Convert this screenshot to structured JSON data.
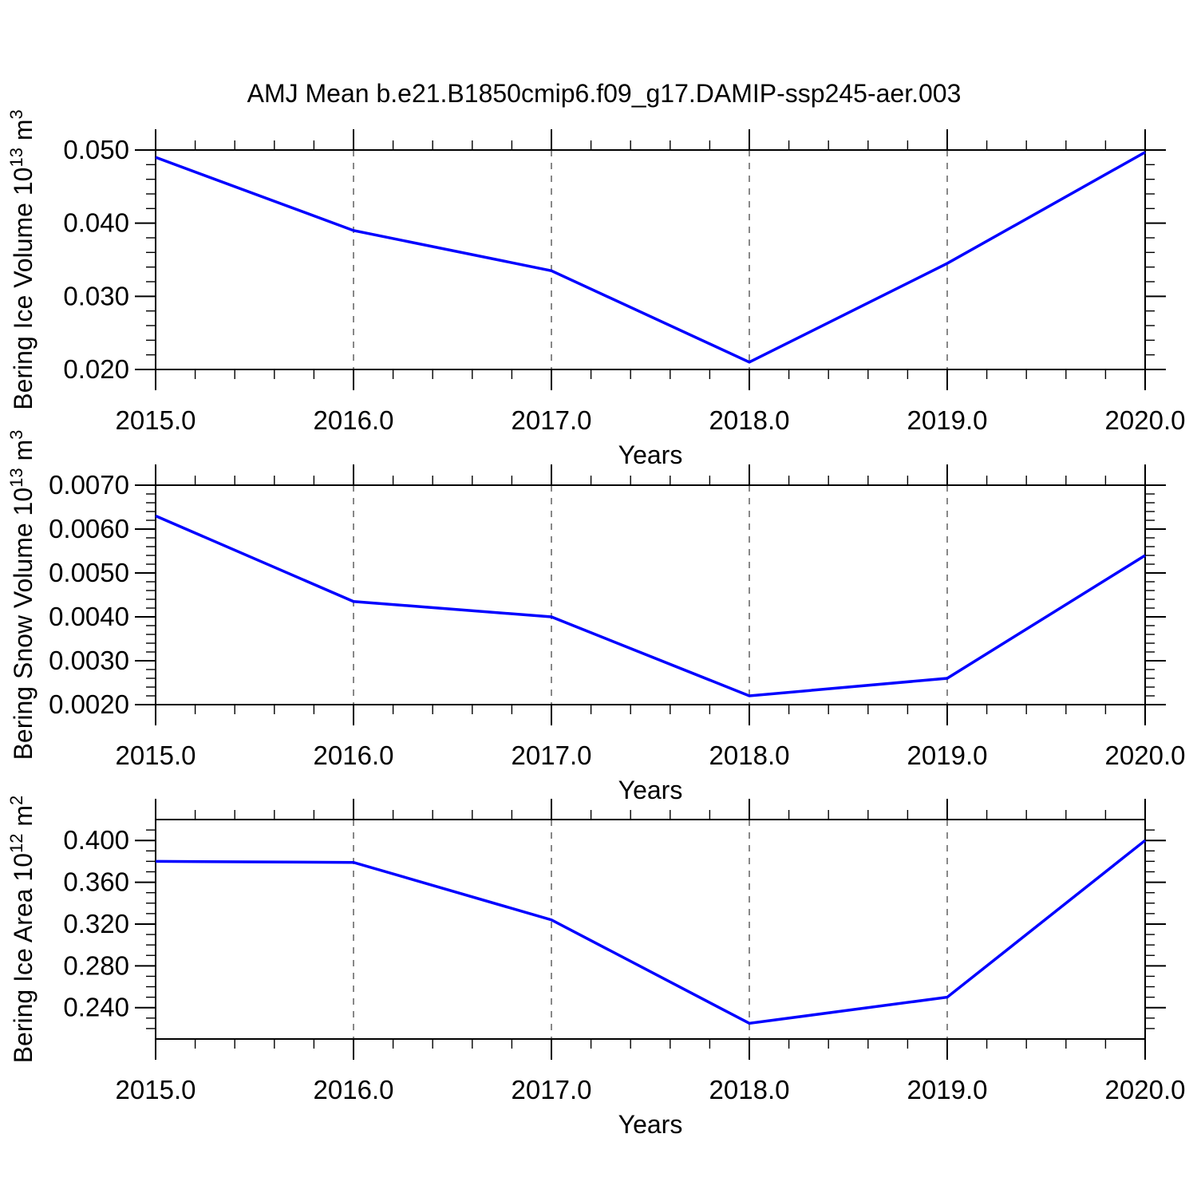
{
  "title": "AMJ Mean b.e21.B1850cmip6.f09_g17.DAMIP-ssp245-aer.003",
  "styles": {
    "line_color": "#0000ff",
    "frame_color": "#000000",
    "dash_line_color": "#888888",
    "background": "#ffffff"
  },
  "chart_data": [
    {
      "type": "line",
      "series_name": "Bering Ice Volume",
      "x": [
        2015,
        2016,
        2017,
        2018,
        2019,
        2020
      ],
      "values": [
        0.049,
        0.039,
        0.0335,
        0.021,
        0.0345,
        0.0497
      ],
      "xlabel": "Years",
      "ylabel": "Bering Ice Volume 10^13 m^3",
      "ylabel_parts": [
        {
          "text": "Bering Ice Volume 10"
        },
        {
          "text": "13",
          "sup": true
        },
        {
          "text": " m"
        },
        {
          "text": "3",
          "sup": true
        }
      ],
      "xlim": [
        2015,
        2020
      ],
      "ylim": [
        0.02,
        0.05
      ],
      "ytick_values": [
        0.02,
        0.03,
        0.04,
        0.05
      ],
      "ytick_labels": [
        "0.020",
        "0.030",
        "0.040",
        "0.050"
      ],
      "y_minor_step": 0.002,
      "xtick_values": [
        2015,
        2016,
        2017,
        2018,
        2019,
        2020
      ],
      "xtick_labels": [
        "2015.0",
        "2016.0",
        "2017.0",
        "2018.0",
        "2019.0",
        "2020.0"
      ],
      "x_minor_step": 0.2,
      "dashed_x_lines": [
        2016,
        2017,
        2018,
        2019
      ],
      "legend": "none",
      "grid": "dashed vertical year lines only"
    },
    {
      "type": "line",
      "series_name": "Bering Snow Volume",
      "x": [
        2015,
        2016,
        2017,
        2018,
        2019,
        2020
      ],
      "values": [
        0.0063,
        0.00435,
        0.004,
        0.0022,
        0.0026,
        0.0054
      ],
      "xlabel": "Years",
      "ylabel": "Bering Snow Volume 10^13 m^3",
      "ylabel_parts": [
        {
          "text": "Bering Snow Volume 10"
        },
        {
          "text": "13",
          "sup": true
        },
        {
          "text": " m"
        },
        {
          "text": "3",
          "sup": true
        }
      ],
      "xlim": [
        2015,
        2020
      ],
      "ylim": [
        0.002,
        0.007
      ],
      "ytick_values": [
        0.002,
        0.003,
        0.004,
        0.005,
        0.006,
        0.007
      ],
      "ytick_labels": [
        "0.0020",
        "0.0030",
        "0.0040",
        "0.0050",
        "0.0060",
        "0.0070"
      ],
      "y_minor_step": 0.0002,
      "xtick_values": [
        2015,
        2016,
        2017,
        2018,
        2019,
        2020
      ],
      "xtick_labels": [
        "2015.0",
        "2016.0",
        "2017.0",
        "2018.0",
        "2019.0",
        "2020.0"
      ],
      "x_minor_step": 0.2,
      "dashed_x_lines": [
        2016,
        2017,
        2018,
        2019
      ],
      "legend": "none",
      "grid": "dashed vertical year lines only"
    },
    {
      "type": "line",
      "series_name": "Bering Ice Area",
      "x": [
        2015,
        2016,
        2017,
        2018,
        2019,
        2020
      ],
      "values": [
        0.38,
        0.379,
        0.324,
        0.225,
        0.25,
        0.4
      ],
      "xlabel": "Years",
      "ylabel": "Bering Ice Area 10^12 m^2",
      "ylabel_parts": [
        {
          "text": "Bering Ice Area 10"
        },
        {
          "text": "12",
          "sup": true
        },
        {
          "text": " m"
        },
        {
          "text": "2",
          "sup": true
        }
      ],
      "xlim": [
        2015,
        2020
      ],
      "ylim": [
        0.21,
        0.42
      ],
      "ytick_values": [
        0.24,
        0.28,
        0.32,
        0.36,
        0.4
      ],
      "ytick_labels": [
        "0.240",
        "0.280",
        "0.320",
        "0.360",
        "0.400"
      ],
      "y_minor_step": 0.01,
      "xtick_values": [
        2015,
        2016,
        2017,
        2018,
        2019,
        2020
      ],
      "xtick_labels": [
        "2015.0",
        "2016.0",
        "2017.0",
        "2018.0",
        "2019.0",
        "2020.0"
      ],
      "x_minor_step": 0.2,
      "dashed_x_lines": [
        2016,
        2017,
        2018,
        2019
      ],
      "legend": "none",
      "grid": "dashed vertical year lines only"
    }
  ]
}
